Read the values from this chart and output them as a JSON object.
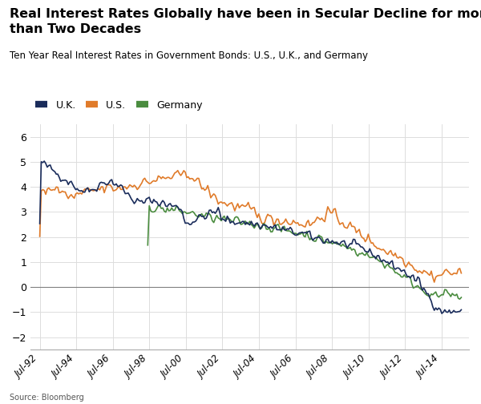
{
  "title": "Real Interest Rates Globally have been in Secular Decline for more\nthan Two Decades",
  "subtitle": "Ten Year Real Interest Rates in Government Bonds: U.S., U.K., and Germany",
  "source": "Source: Bloomberg",
  "legend": [
    "U.K.",
    "U.S.",
    "Germany"
  ],
  "colors": {
    "UK": "#1a2c5b",
    "US": "#e07b2a",
    "Germany": "#4a8c3f"
  },
  "ylim": [
    -2.5,
    6.5
  ],
  "yticks": [
    -2,
    -1,
    0,
    1,
    2,
    3,
    4,
    5,
    6
  ],
  "xtick_labels": [
    "Jul-92",
    "Jul-94",
    "Jul-96",
    "Jul-98",
    "Jul-00",
    "Jul-02",
    "Jul-04",
    "Jul-06",
    "Jul-08",
    "Jul-10",
    "Jul-12",
    "Jul-14"
  ],
  "background_color": "#ffffff",
  "grid_color": "#dddddd"
}
